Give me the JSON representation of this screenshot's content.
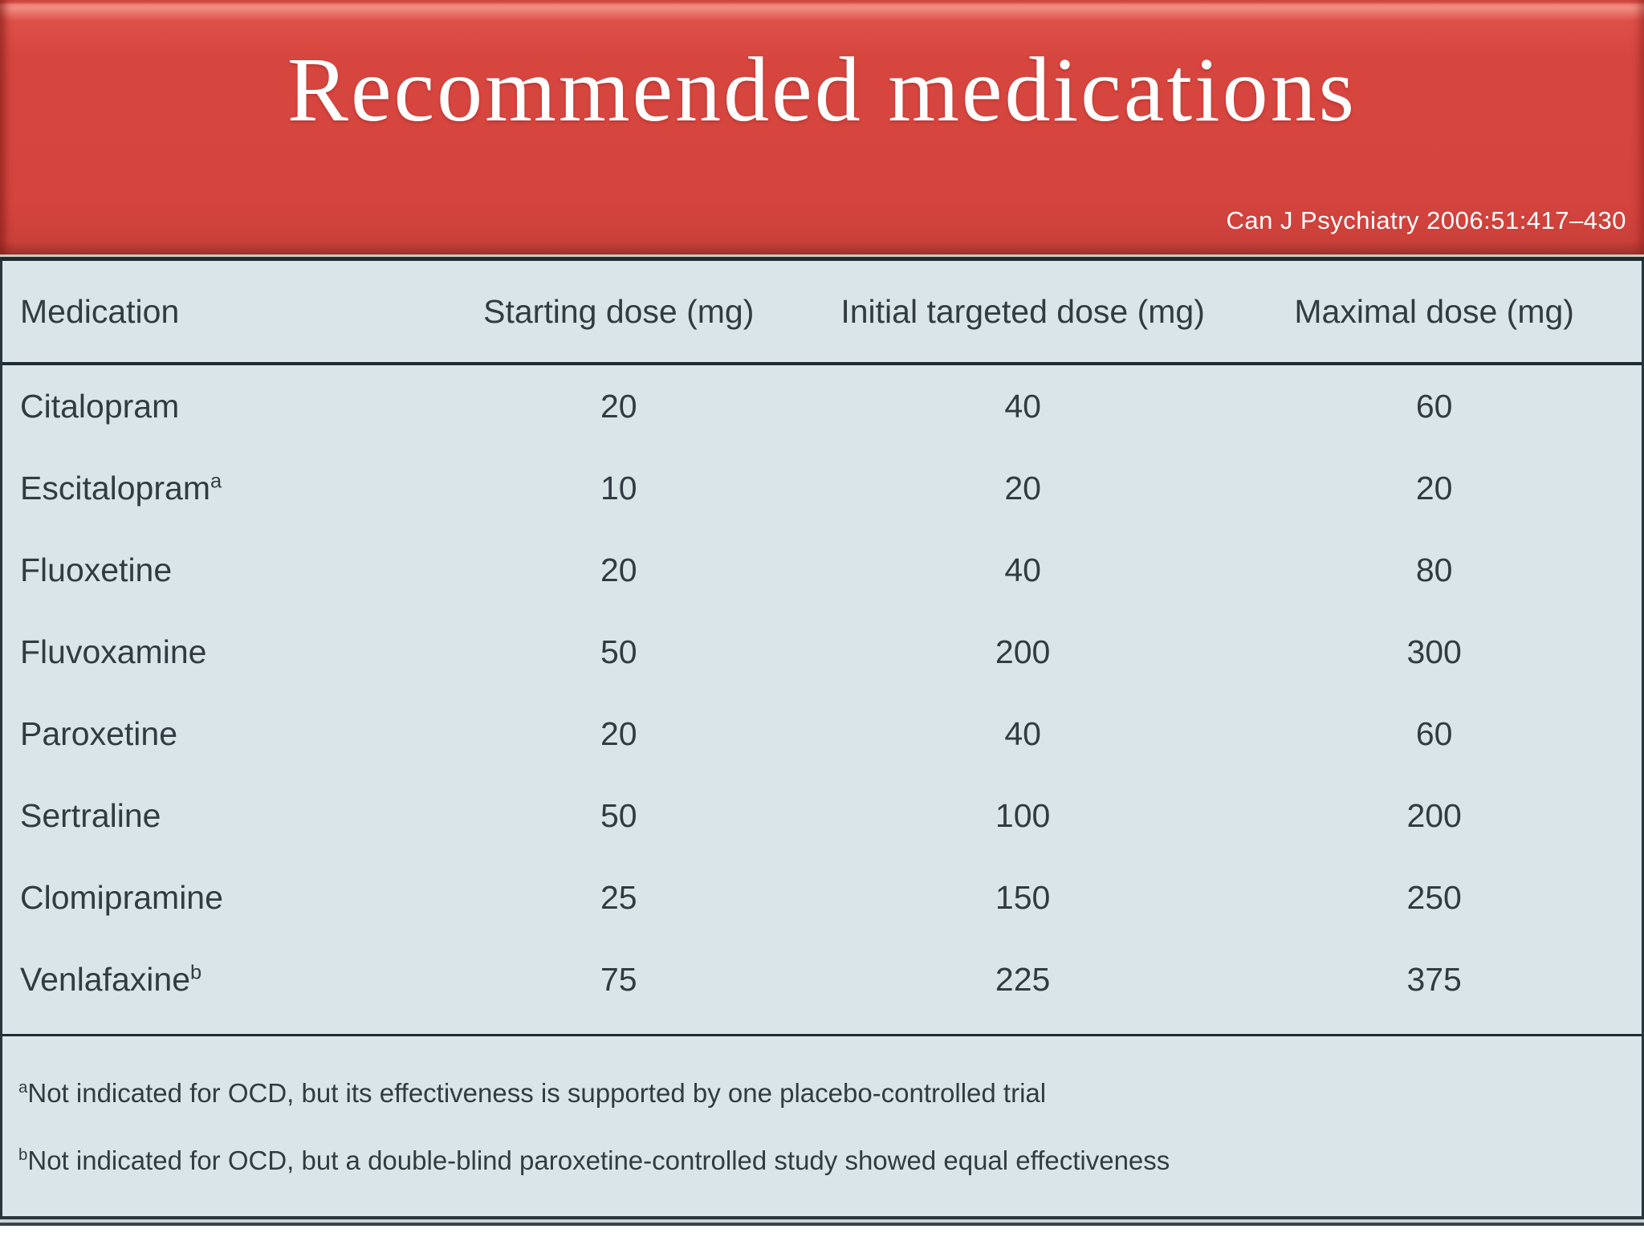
{
  "slide": {
    "title": "Recommended medications",
    "citation": "Can J Psychiatry 2006:51:417–430"
  },
  "table": {
    "columns": [
      "Medication",
      "Starting dose (mg)",
      "Initial targeted dose (mg)",
      "Maximal dose (mg)"
    ],
    "rows": [
      {
        "medication": "Citalopram",
        "superscript": "",
        "starting": "20",
        "initial": "40",
        "maximal": "60"
      },
      {
        "medication": "Escitalopram",
        "superscript": "a",
        "starting": "10",
        "initial": "20",
        "maximal": "20"
      },
      {
        "medication": "Fluoxetine",
        "superscript": "",
        "starting": "20",
        "initial": "40",
        "maximal": "80"
      },
      {
        "medication": "Fluvoxamine",
        "superscript": "",
        "starting": "50",
        "initial": "200",
        "maximal": "300"
      },
      {
        "medication": "Paroxetine",
        "superscript": "",
        "starting": "20",
        "initial": "40",
        "maximal": "60"
      },
      {
        "medication": "Sertraline",
        "superscript": "",
        "starting": "50",
        "initial": "100",
        "maximal": "200"
      },
      {
        "medication": "Clomipramine",
        "superscript": "",
        "starting": "25",
        "initial": "150",
        "maximal": "250"
      },
      {
        "medication": "Venlafaxine",
        "superscript": "b",
        "starting": "75",
        "initial": "225",
        "maximal": "375"
      }
    ],
    "footnotes": [
      {
        "marker": "a",
        "text": "Not indicated for OCD, but its effectiveness is supported by one placebo-controlled trial"
      },
      {
        "marker": "b",
        "text": "Not indicated for OCD, but a double-blind paroxetine-controlled study showed equal effectiveness"
      }
    ]
  },
  "colors": {
    "banner_red": "#d5443e",
    "banner_maroon_edge": "#9f3430",
    "table_background": "#dae5ea",
    "rule_dark": "#1d2b33",
    "text": "#333b42",
    "title_white": "#ffffff"
  }
}
